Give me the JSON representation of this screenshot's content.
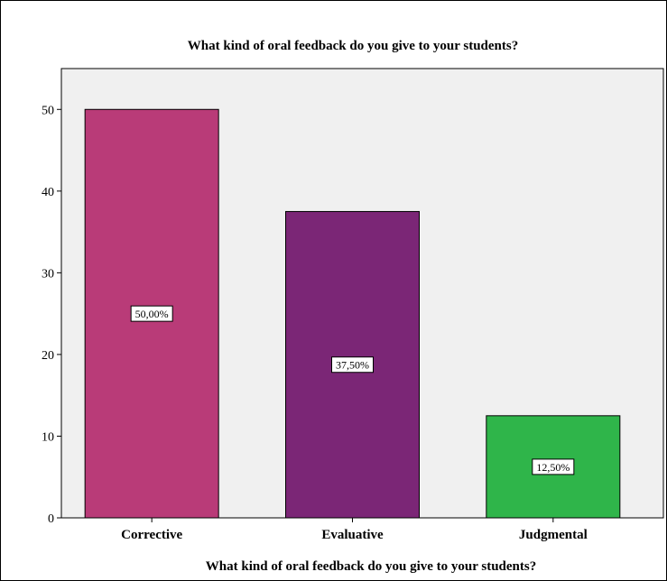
{
  "chart_data": {
    "type": "bar",
    "title": "What kind of oral feedback do you give to your students?",
    "xlabel": "What kind of oral feedback do you give to your students?",
    "ylabel": "",
    "categories": [
      "Corrective",
      "Evaluative",
      "Judgmental"
    ],
    "values": [
      50.0,
      37.5,
      12.5
    ],
    "data_labels": [
      "50,00%",
      "37,50%",
      "12,50%"
    ],
    "colors": [
      "#b93b78",
      "#7b2676",
      "#2fb54a"
    ],
    "ylim": [
      0,
      55
    ],
    "yticks": [
      0,
      10,
      20,
      30,
      40,
      50
    ],
    "grid": false,
    "legend": "none",
    "plot_background": "#f0f0f0"
  }
}
